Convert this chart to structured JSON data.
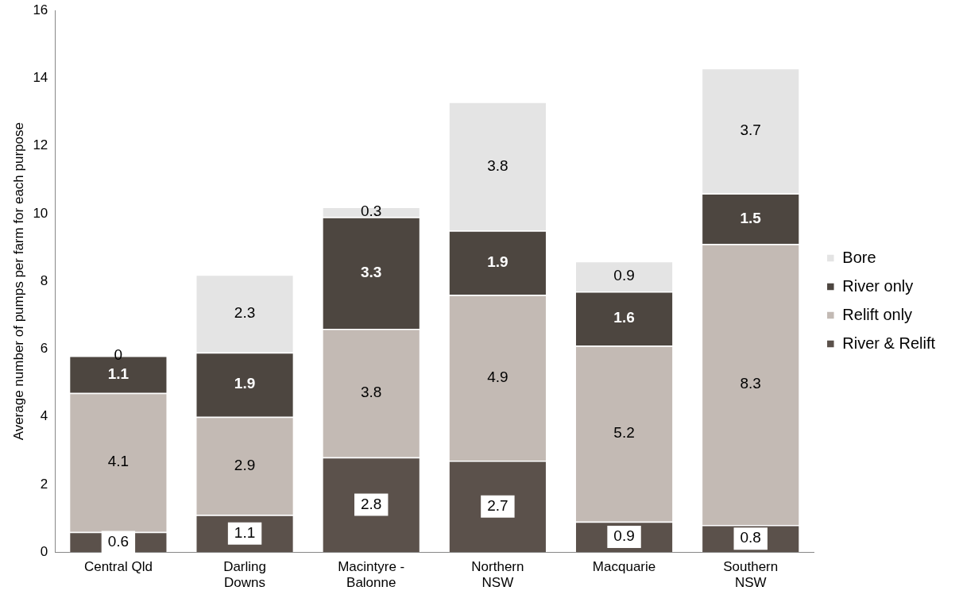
{
  "chart_data": {
    "type": "bar",
    "stacked": true,
    "ylabel": "Average number of pumps per farm for each purpose",
    "categories": [
      "Central Qld",
      "Darling Downs",
      "Macintyre - Balonne",
      "Northern NSW",
      "Macquarie",
      "Southern NSW"
    ],
    "series": [
      {
        "name": "River & Relift",
        "color": "#5b514b",
        "values": [
          0.6,
          1.1,
          2.8,
          2.7,
          0.9,
          0.8
        ]
      },
      {
        "name": "Relift only",
        "color": "#c3bab4",
        "values": [
          4.1,
          2.9,
          3.8,
          4.9,
          5.2,
          8.3
        ]
      },
      {
        "name": "River only",
        "color": "#4d4640",
        "values": [
          1.1,
          1.9,
          3.3,
          1.9,
          1.6,
          1.5
        ]
      },
      {
        "name": "Bore",
        "color": "#e4e4e4",
        "values": [
          0,
          2.3,
          0.3,
          3.8,
          0.9,
          3.7
        ]
      }
    ],
    "ylim": [
      0,
      16
    ],
    "yticks": [
      0,
      2,
      4,
      6,
      8,
      10,
      12,
      14,
      16
    ],
    "grid": false,
    "legend": "right",
    "data_labels": true
  }
}
